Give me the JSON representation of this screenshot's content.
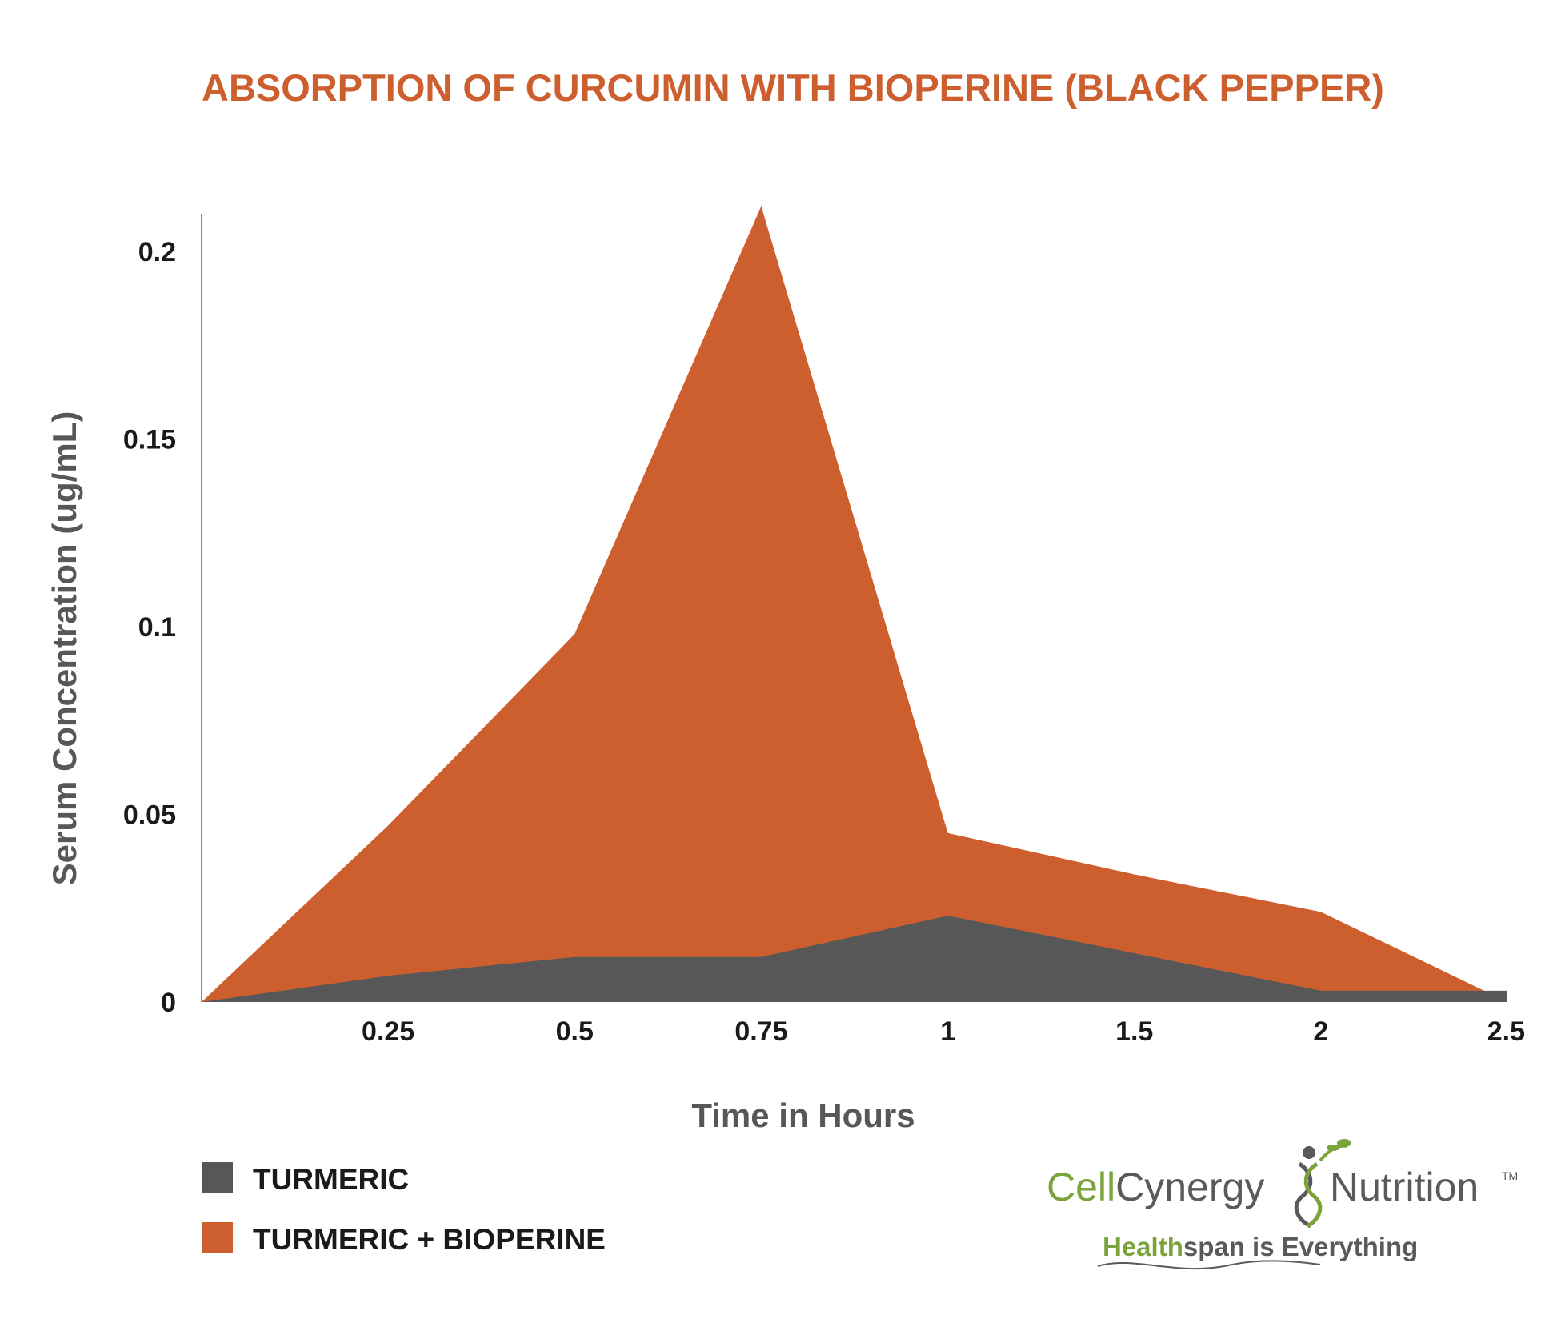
{
  "chart_data": {
    "type": "area",
    "title": "ABSORPTION OF CURCUMIN WITH BIOPERINE (BLACK PEPPER)",
    "xlabel": "Time in Hours",
    "ylabel": "Serum Concentration (ug/mL)",
    "categories": [
      "0",
      "0.25",
      "0.5",
      "0.75",
      "1",
      "1.5",
      "2",
      "2.5"
    ],
    "x_tick_labels": [
      "0.25",
      "0.5",
      "0.75",
      "1",
      "1.5",
      "2",
      "2.5"
    ],
    "y_ticks": [
      "0",
      "0.05",
      "0.1",
      "0.15",
      "0.2"
    ],
    "y_tick_values": [
      0,
      0.05,
      0.1,
      0.15,
      0.2
    ],
    "ylim": [
      0,
      0.21
    ],
    "grid": false,
    "legend_position": "bottom-left",
    "series": [
      {
        "name": "TURMERIC + BIOPERINE",
        "color": "#cd5f2f",
        "values": [
          0,
          0.047,
          0.098,
          0.212,
          0.045,
          0.034,
          0.024,
          0
        ]
      },
      {
        "name": "TURMERIC",
        "color": "#575757",
        "values": [
          0,
          0.007,
          0.012,
          0.012,
          0.023,
          0.013,
          0.003,
          0.003
        ]
      }
    ]
  },
  "brand": {
    "name_part1": "Cell",
    "name_part2": "Cynergy",
    "name_part3": "Nutrition",
    "trademark": "TM",
    "tagline_part1": "Health",
    "tagline_part2": "span is Everything",
    "logo_icon": "dna-figure-icon"
  }
}
